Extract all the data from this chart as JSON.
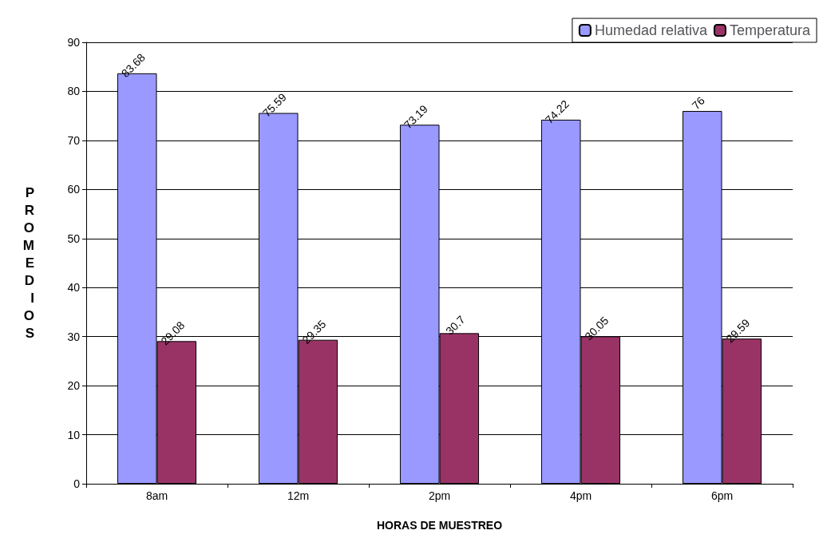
{
  "chart_data": {
    "type": "bar",
    "xlabel": "HORAS DE MUESTREO",
    "ylabel": "PROMEDIOS",
    "categories": [
      "8am",
      "12m",
      "2pm",
      "4pm",
      "6pm"
    ],
    "series": [
      {
        "name": "Humedad relativa",
        "color": "#9999ff",
        "values": [
          83.68,
          75.59,
          73.19,
          74.22,
          76
        ]
      },
      {
        "name": "Temperatura",
        "color": "#993366",
        "values": [
          29.08,
          29.35,
          30.7,
          30.05,
          29.59
        ]
      }
    ],
    "ylim": [
      0,
      90
    ],
    "yticks": [
      0,
      10,
      20,
      30,
      40,
      50,
      60,
      70,
      80,
      90
    ],
    "grid": "y",
    "legend": "top right",
    "data_labels": true
  }
}
